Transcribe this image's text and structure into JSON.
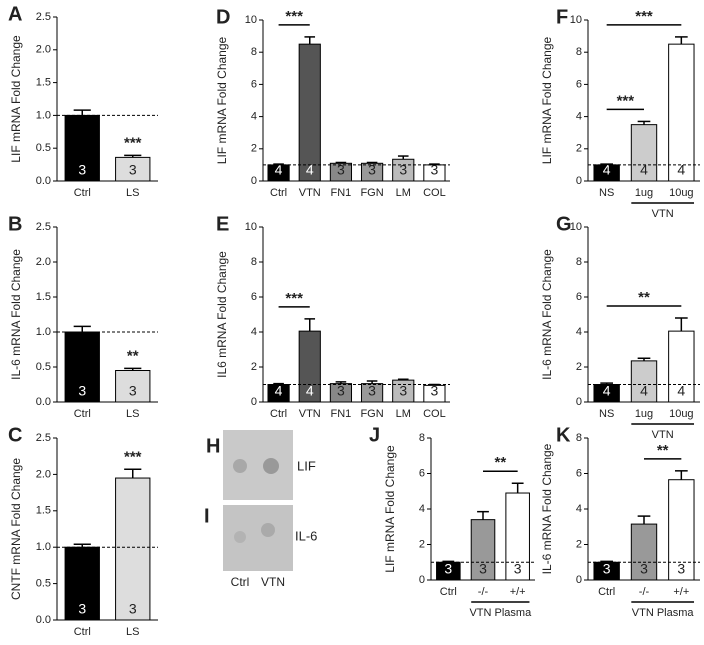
{
  "chart_data": [
    {
      "type": "bar",
      "panel": "A",
      "ylabel": "LIF mRNA Fold Change",
      "categories": [
        "Ctrl",
        "LS"
      ],
      "values": [
        1.0,
        0.36
      ],
      "errors": [
        0.08,
        0.03
      ],
      "colors": [
        "#000000",
        "#dddddd"
      ],
      "n": [
        3,
        3
      ],
      "ylim": [
        0,
        2.5
      ],
      "yticks": [
        {
          "value": 0,
          "label": "0.0"
        },
        0.5,
        {
          "value": 1,
          "label": "1.0"
        },
        1.5,
        {
          "value": 2,
          "label": "2.0"
        },
        2.5
      ],
      "reference_line": 1,
      "annotations": [
        {
          "category": "LS",
          "label": "***"
        }
      ]
    },
    {
      "type": "bar",
      "panel": "B",
      "ylabel": "IL-6 mRNA Fold Change",
      "categories": [
        "Ctrl",
        "LS"
      ],
      "values": [
        1.0,
        0.45
      ],
      "errors": [
        0.08,
        0.03
      ],
      "colors": [
        "#000000",
        "#dddddd"
      ],
      "n": [
        3,
        3
      ],
      "ylim": [
        0,
        2.5
      ],
      "yticks": [
        {
          "value": 0,
          "label": "0.0"
        },
        0.5,
        {
          "value": 1,
          "label": "1.0"
        },
        1.5,
        {
          "value": 2,
          "label": "2.0"
        },
        2.5
      ],
      "reference_line": 1,
      "annotations": [
        {
          "category": "LS",
          "label": "**"
        }
      ]
    },
    {
      "type": "bar",
      "panel": "C",
      "ylabel": "CNTF mRNA Fold Change",
      "categories": [
        "Ctrl",
        "LS"
      ],
      "values": [
        1.0,
        1.95
      ],
      "errors": [
        0.04,
        0.12
      ],
      "colors": [
        "#000000",
        "#dddddd"
      ],
      "n": [
        3,
        3
      ],
      "ylim": [
        0,
        2.5
      ],
      "yticks": [
        {
          "value": 0,
          "label": "0.0"
        },
        0.5,
        {
          "value": 1,
          "label": "1.0"
        },
        1.5,
        {
          "value": 2,
          "label": "2.0"
        },
        2.5
      ],
      "reference_line": 1,
      "annotations": [
        {
          "category": "LS",
          "label": "***"
        }
      ]
    },
    {
      "type": "bar",
      "panel": "D",
      "ylabel": "LIF mRNA Fold Change",
      "categories": [
        "Ctrl",
        "VTN",
        "FN1",
        "FGN",
        "LM",
        "COL"
      ],
      "values": [
        1.0,
        8.5,
        1.1,
        1.1,
        1.35,
        1.0
      ],
      "errors": [
        0.05,
        0.45,
        0.05,
        0.05,
        0.2,
        0.05
      ],
      "colors": [
        "#000000",
        "#555555",
        "#888888",
        "#999999",
        "#bbbbbb",
        "#ffffff"
      ],
      "n": [
        4,
        4,
        3,
        3,
        3,
        3
      ],
      "ylim": [
        0,
        10
      ],
      "yticks": [
        0,
        2,
        4,
        6,
        8,
        10
      ],
      "reference_line": 1,
      "brackets": [
        {
          "between": [
            "Ctrl",
            "VTN"
          ],
          "label": "***"
        }
      ]
    },
    {
      "type": "bar",
      "panel": "E",
      "ylabel": "IL6 mRNA Fold Change",
      "categories": [
        "Ctrl",
        "VTN",
        "FN1",
        "FGN",
        "LM",
        "COL"
      ],
      "values": [
        1.0,
        4.05,
        1.05,
        1.05,
        1.25,
        0.95
      ],
      "errors": [
        0.05,
        0.7,
        0.1,
        0.15,
        0.05,
        0.05
      ],
      "colors": [
        "#000000",
        "#555555",
        "#888888",
        "#999999",
        "#bbbbbb",
        "#ffffff"
      ],
      "n": [
        4,
        4,
        3,
        3,
        3,
        3
      ],
      "ylim": [
        0,
        10
      ],
      "yticks": [
        0,
        2,
        4,
        6,
        8,
        10
      ],
      "reference_line": 1,
      "brackets": [
        {
          "between": [
            "Ctrl",
            "VTN"
          ],
          "label": "***"
        }
      ]
    },
    {
      "type": "bar",
      "panel": "F",
      "ylabel": "LIF mRNA Fold Change",
      "categories": [
        "NS",
        "1ug",
        "10ug"
      ],
      "values": [
        1.0,
        3.5,
        8.5
      ],
      "errors": [
        0.05,
        0.2,
        0.45
      ],
      "colors": [
        "#000000",
        "#cccccc",
        "#ffffff"
      ],
      "n": [
        4,
        4,
        4
      ],
      "ylim": [
        0,
        10
      ],
      "yticks": [
        0,
        2,
        4,
        6,
        8,
        10
      ],
      "reference_line": 1,
      "brackets": [
        {
          "between": [
            "NS",
            "1ug"
          ],
          "label": "***"
        },
        {
          "between": [
            "NS",
            "10ug"
          ],
          "label": "***"
        }
      ],
      "group": {
        "label": "VTN",
        "categories": [
          "1ug",
          "10ug"
        ]
      }
    },
    {
      "type": "bar",
      "panel": "G",
      "ylabel": "IL-6 mRNA Fold Change",
      "categories": [
        "NS",
        "1ug",
        "10ug"
      ],
      "values": [
        1.0,
        2.35,
        4.05
      ],
      "errors": [
        0.08,
        0.15,
        0.75
      ],
      "colors": [
        "#000000",
        "#cccccc",
        "#ffffff"
      ],
      "n": [
        4,
        4,
        4
      ],
      "ylim": [
        0,
        10
      ],
      "yticks": [
        0,
        2,
        4,
        6,
        8,
        10
      ],
      "reference_line": 1,
      "brackets": [
        {
          "between": [
            "NS",
            "10ug"
          ],
          "label": "**"
        }
      ],
      "group": {
        "label": "VTN",
        "categories": [
          "1ug",
          "10ug"
        ]
      }
    },
    {
      "type": "bar",
      "panel": "J",
      "ylabel": "LIF mRNA Fold Change",
      "categories": [
        "Ctrl",
        "-/-",
        "+/+"
      ],
      "values": [
        1.0,
        3.4,
        4.9
      ],
      "errors": [
        0.05,
        0.45,
        0.55
      ],
      "colors": [
        "#000000",
        "#999999",
        "#ffffff"
      ],
      "n": [
        3,
        3,
        3
      ],
      "ylim": [
        0,
        8
      ],
      "yticks": [
        0,
        2,
        4,
        6,
        8
      ],
      "reference_line": 1,
      "brackets": [
        {
          "between": [
            "-/-",
            "+/+"
          ],
          "label": "**"
        }
      ],
      "group": {
        "label": "VTN Plasma",
        "categories": [
          "-/-",
          "+/+"
        ]
      }
    },
    {
      "type": "bar",
      "panel": "K",
      "ylabel": "IL-6 mRNA Fold Change",
      "categories": [
        "Ctrl",
        "-/-",
        "+/+"
      ],
      "values": [
        1.0,
        3.15,
        5.65
      ],
      "errors": [
        0.05,
        0.45,
        0.5
      ],
      "colors": [
        "#000000",
        "#999999",
        "#ffffff"
      ],
      "n": [
        3,
        3,
        3
      ],
      "ylim": [
        0,
        8
      ],
      "yticks": [
        0,
        2,
        4,
        6,
        8
      ],
      "reference_line": 1,
      "brackets": [
        {
          "between": [
            "-/-",
            "+/+"
          ],
          "label": "**"
        }
      ],
      "group": {
        "label": "VTN Plasma",
        "categories": [
          "-/-",
          "+/+"
        ]
      }
    }
  ],
  "blot": {
    "panels": [
      "H",
      "I"
    ],
    "rows": [
      "LIF",
      "IL-6"
    ],
    "columns": [
      "Ctrl",
      "VTN"
    ]
  }
}
